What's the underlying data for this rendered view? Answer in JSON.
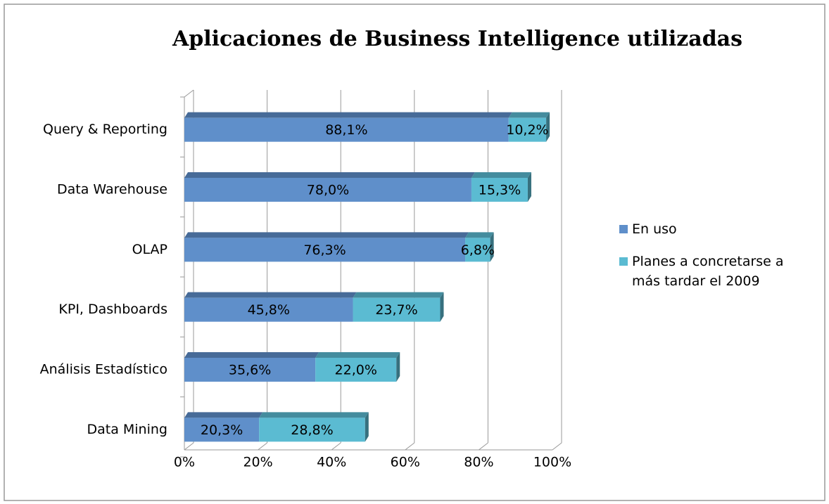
{
  "chart_data": {
    "type": "stacked_bar_horizontal",
    "title": "Aplicaciones de Business Intelligence utilizadas",
    "categories": [
      "Query & Reporting",
      "Data Warehouse",
      "OLAP",
      "KPI, Dashboards",
      "Análisis Estadístico",
      "Data Mining"
    ],
    "series": [
      {
        "name": "En uso",
        "color": "#5f8fca",
        "values": [
          88.1,
          78.0,
          76.3,
          45.8,
          35.6,
          20.3
        ],
        "value_labels": [
          "88,1%",
          "78,0%",
          "76,3%",
          "45,8%",
          "35,6%",
          "20,3%"
        ]
      },
      {
        "name": "Planes a concretarse a más tardar el 2009",
        "color": "#5bbbd2",
        "values": [
          10.2,
          15.3,
          6.8,
          23.7,
          22.0,
          28.8
        ],
        "value_labels": [
          "10,2%",
          "15,3%",
          "6,8%",
          "23,7%",
          "22,0%",
          "28,8%"
        ]
      }
    ],
    "xlim": [
      0,
      100
    ],
    "xticks": [
      {
        "value": 0,
        "label": "0%"
      },
      {
        "value": 20,
        "label": "20%"
      },
      {
        "value": 40,
        "label": "40%"
      },
      {
        "value": 60,
        "label": "60%"
      },
      {
        "value": 80,
        "label": "80%"
      },
      {
        "value": 100,
        "label": "100%"
      }
    ],
    "grid": true,
    "legend": "right"
  }
}
